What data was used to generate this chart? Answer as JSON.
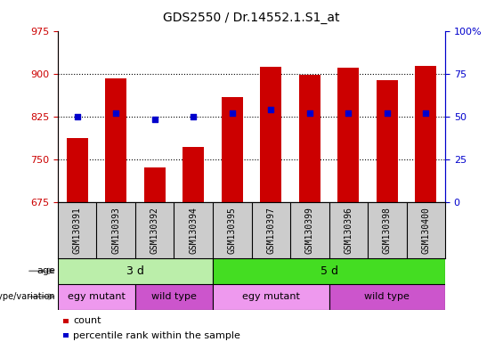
{
  "title": "GDS2550 / Dr.14552.1.S1_at",
  "samples": [
    "GSM130391",
    "GSM130393",
    "GSM130392",
    "GSM130394",
    "GSM130395",
    "GSM130397",
    "GSM130399",
    "GSM130396",
    "GSM130398",
    "GSM130400"
  ],
  "count_values": [
    787,
    891,
    735,
    771,
    858,
    912,
    898,
    910,
    888,
    913
  ],
  "percentile_values": [
    50,
    52,
    48,
    50,
    52,
    54,
    52,
    52,
    52,
    52
  ],
  "ylim_left": [
    675,
    975
  ],
  "ylim_right": [
    0,
    100
  ],
  "yticks_left": [
    675,
    750,
    825,
    900,
    975
  ],
  "yticks_right": [
    0,
    25,
    50,
    75,
    100
  ],
  "bar_color": "#cc0000",
  "dot_color": "#0000cc",
  "age_groups": [
    {
      "label": "3 d",
      "start": 0,
      "end": 4,
      "color": "#bbeeaa"
    },
    {
      "label": "5 d",
      "start": 4,
      "end": 10,
      "color": "#44dd22"
    }
  ],
  "genotype_groups": [
    {
      "label": "egy mutant",
      "start": 0,
      "end": 2,
      "color": "#ee99ee"
    },
    {
      "label": "wild type",
      "start": 2,
      "end": 4,
      "color": "#cc55cc"
    },
    {
      "label": "egy mutant",
      "start": 4,
      "end": 7,
      "color": "#ee99ee"
    },
    {
      "label": "wild type",
      "start": 7,
      "end": 10,
      "color": "#cc55cc"
    }
  ],
  "legend_items": [
    {
      "label": "count",
      "color": "#cc0000"
    },
    {
      "label": "percentile rank within the sample",
      "color": "#0000cc"
    }
  ],
  "bar_width": 0.55,
  "grid_color": "black",
  "tick_label_color_left": "#cc0000",
  "tick_label_color_right": "#0000cc",
  "age_label": "age",
  "genotype_label": "genotype/variation",
  "sample_area_color": "#cccccc",
  "sample_area_facecolor": "#dddddd"
}
